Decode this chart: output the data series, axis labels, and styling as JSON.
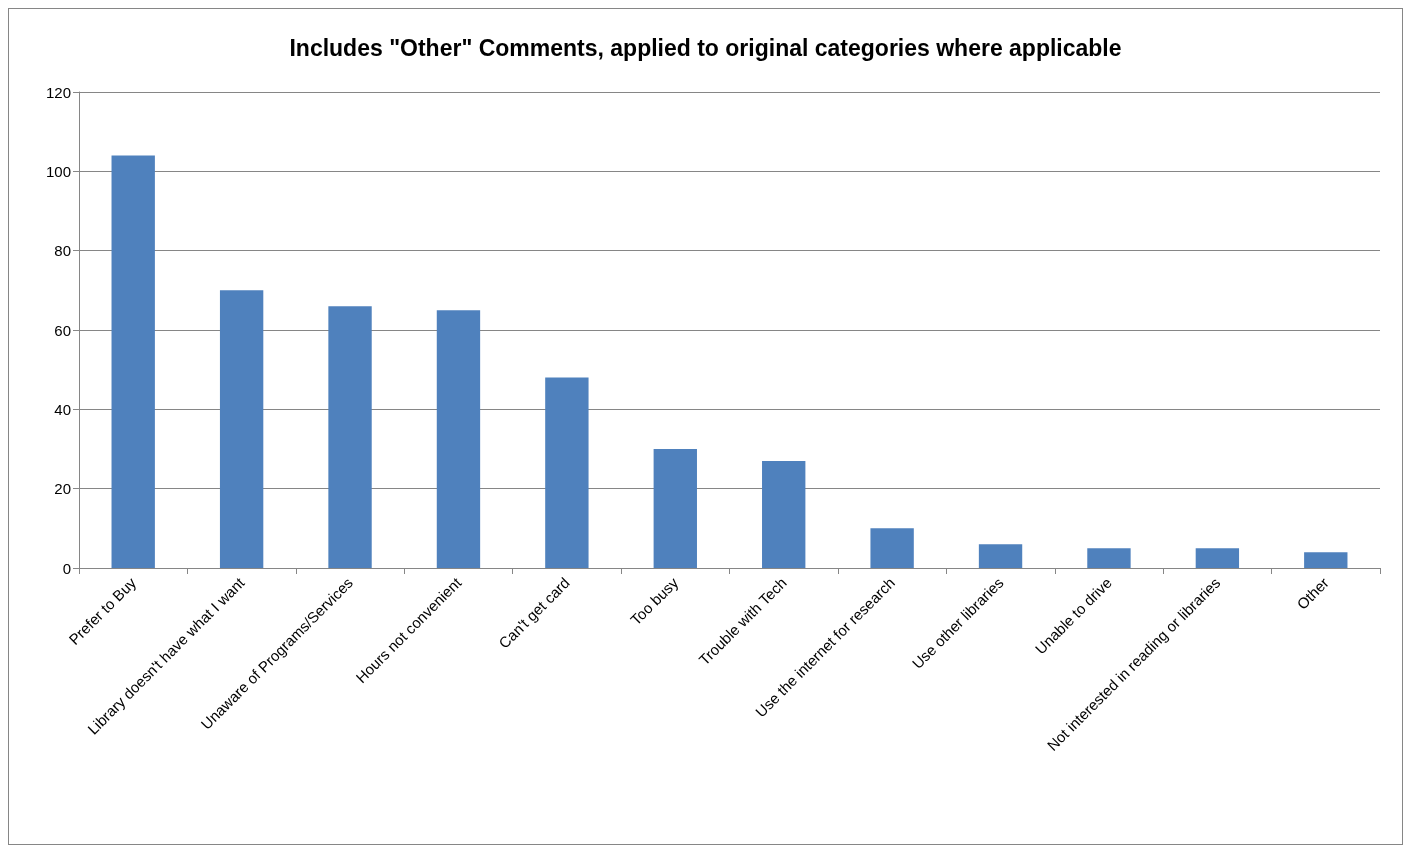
{
  "chart_data": {
    "type": "bar",
    "title": "Includes \"Other\" Comments, applied to original categories where applicable",
    "categories": [
      "Prefer to Buy",
      "Library doesn't have what I want",
      "Unaware of Programs/Services",
      "Hours not convenient",
      "Can't get card",
      "Too busy",
      "Trouble with Tech",
      "Use the internet for research",
      "Use other libraries",
      "Unable to drive",
      "Not interested in reading or libraries",
      "Other"
    ],
    "values": [
      104,
      70,
      66,
      65,
      48,
      30,
      27,
      10,
      6,
      5,
      5,
      4
    ],
    "color": "#4f81bd",
    "ylim": [
      0,
      120
    ],
    "yticks": [
      0,
      20,
      40,
      60,
      80,
      100,
      120
    ],
    "grid": "y"
  }
}
